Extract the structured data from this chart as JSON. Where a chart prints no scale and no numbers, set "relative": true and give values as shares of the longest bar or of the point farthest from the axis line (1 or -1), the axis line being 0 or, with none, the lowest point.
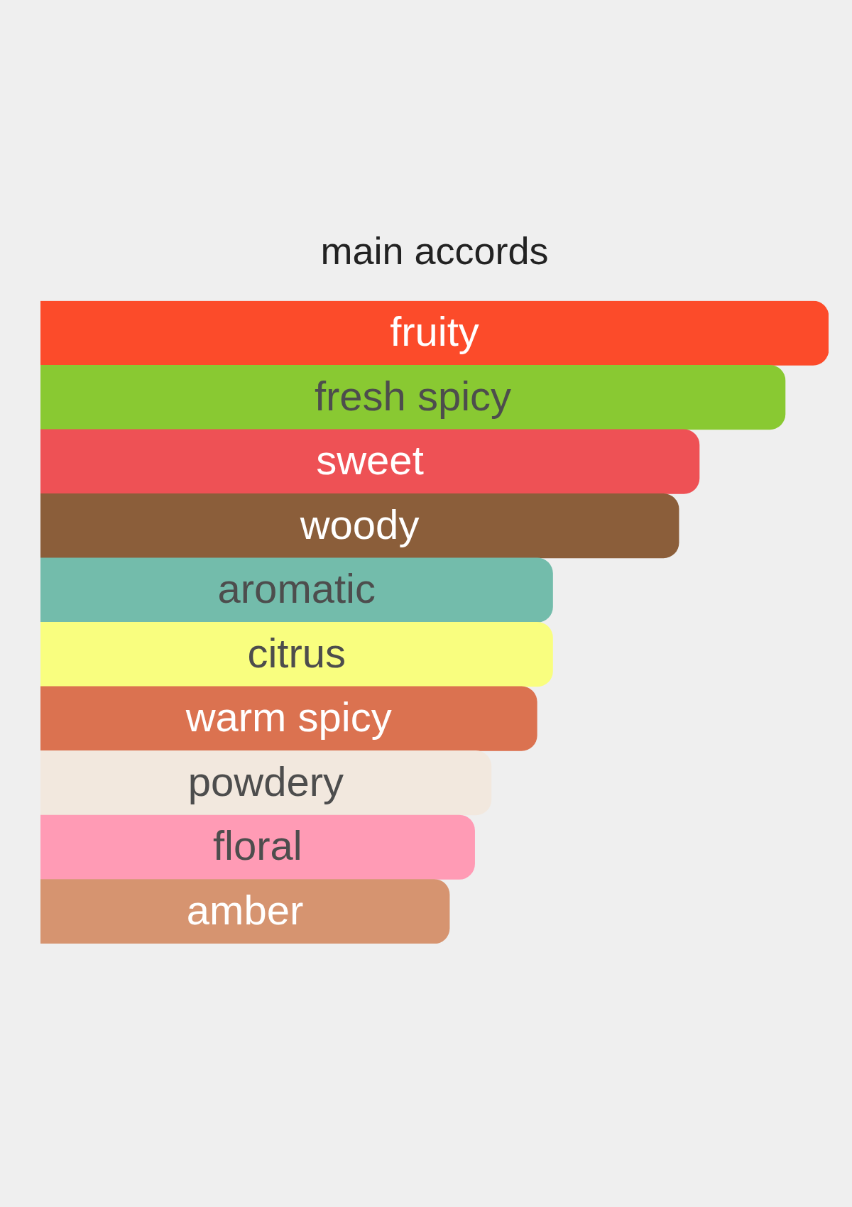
{
  "chart_data": {
    "type": "bar",
    "title": "main accords",
    "orientation": "horizontal",
    "relative": true,
    "categories": [
      "fruity",
      "fresh spicy",
      "sweet",
      "woody",
      "aromatic",
      "citrus",
      "warm spicy",
      "powdery",
      "floral",
      "amber"
    ],
    "values": [
      1,
      0.945,
      0.836,
      0.81,
      0.65,
      0.65,
      0.63,
      0.572,
      0.551,
      0.519
    ],
    "colors": [
      "#fc4b2a",
      "#89c932",
      "#ee5155",
      "#8b5e3a",
      "#73bcab",
      "#f9fe7f",
      "#db7250",
      "#f2e8de",
      "#ff9bb5",
      "#d69470"
    ]
  }
}
